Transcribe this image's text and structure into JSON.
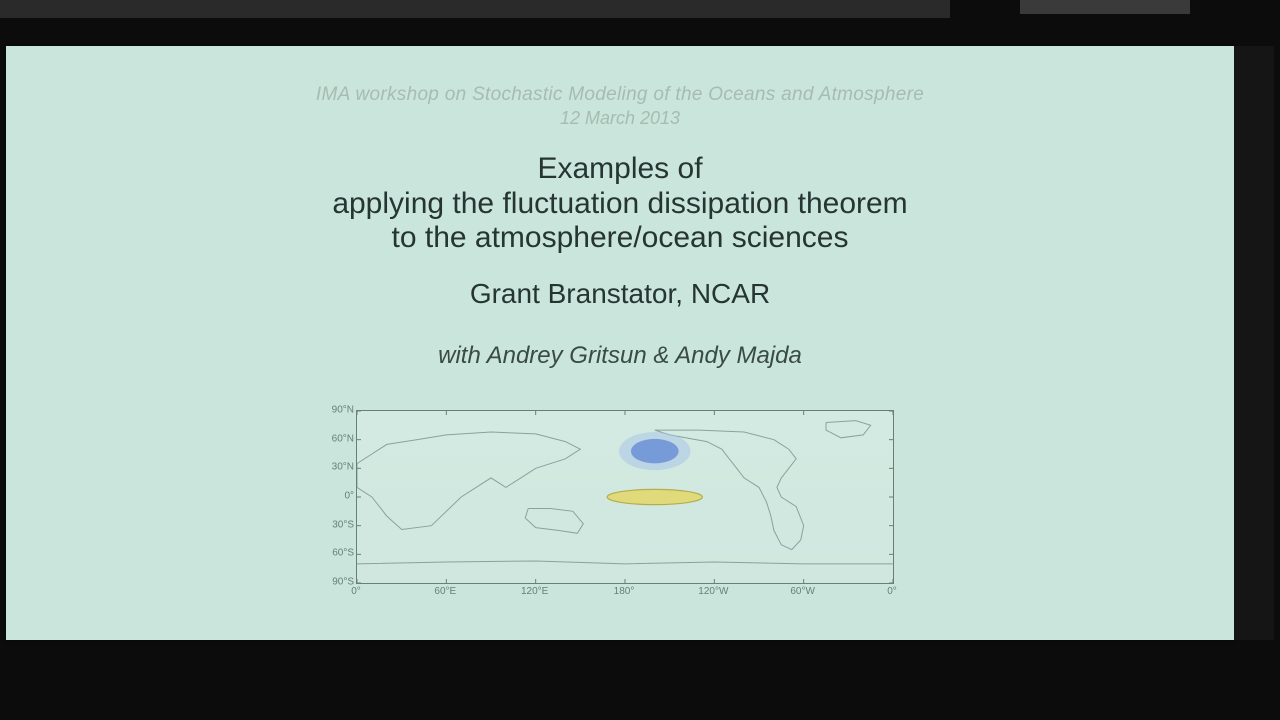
{
  "slide": {
    "faint_header": "IMA workshop on Stochastic Modeling of the Oceans and Atmosphere",
    "faint_sub": "12 March 2013",
    "title_l1": "Examples of",
    "title_l2": "applying the fluctuation dissipation theorem",
    "title_l3": "to the atmosphere/ocean sciences",
    "author": "Grant Branstator, NCAR",
    "with": "with Andrey Gritsun & Andy Majda",
    "colors": {
      "background": "#c9e5dc",
      "text": "#263532",
      "faint": "#a8bbb1",
      "axis": "#6a7e79",
      "coast": "#8aa29b",
      "ellipse_fill": "#e0da7a",
      "ellipse_stroke": "#b5ad4d",
      "blob_center": "#6b8fd6",
      "blob_outer": "#a9c4e8"
    },
    "map": {
      "type": "world-map-contour",
      "xlim": [
        0,
        360
      ],
      "ylim": [
        -90,
        90
      ],
      "yticks": [
        {
          "v": 90,
          "label": "90°N"
        },
        {
          "v": 60,
          "label": "60°N"
        },
        {
          "v": 30,
          "label": "30°N"
        },
        {
          "v": 0,
          "label": "0°"
        },
        {
          "v": -30,
          "label": "30°S"
        },
        {
          "v": -60,
          "label": "60°S"
        },
        {
          "v": -90,
          "label": "90°S"
        }
      ],
      "xticks": [
        {
          "v": 0,
          "label": "0°"
        },
        {
          "v": 60,
          "label": "60°E"
        },
        {
          "v": 120,
          "label": "120°E"
        },
        {
          "v": 180,
          "label": "180°"
        },
        {
          "v": 240,
          "label": "120°W"
        },
        {
          "v": 300,
          "label": "60°W"
        },
        {
          "v": 360,
          "label": "0°"
        }
      ],
      "forcing_ellipse": {
        "cx_deg": 200,
        "cy_deg": 0,
        "rx_deg": 32,
        "ry_deg": 8
      },
      "response_blob": {
        "cx_deg": 200,
        "cy_deg": 48,
        "r_deg": 16
      }
    }
  }
}
